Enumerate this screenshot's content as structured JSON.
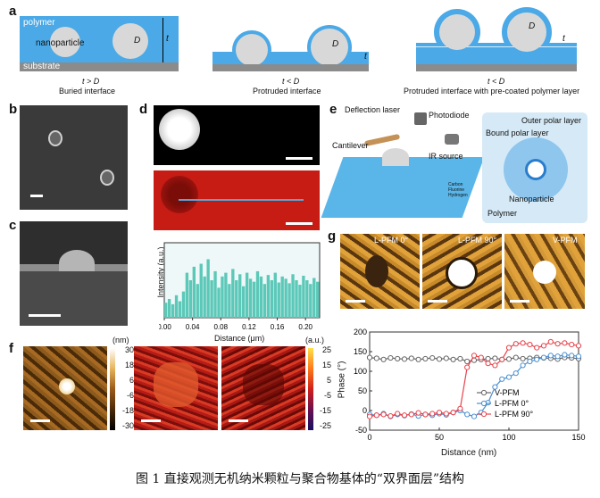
{
  "panel_labels": {
    "a": "a",
    "b": "b",
    "c": "c",
    "d": "d",
    "e": "e",
    "f": "f",
    "g": "g"
  },
  "panel_a": {
    "left": {
      "polymer": "polymer",
      "nanoparticle": "nanoparticle",
      "substrate": "substrate",
      "D": "D",
      "t": "t",
      "cond": "t > D",
      "title": "Buried interface"
    },
    "mid": {
      "D": "D",
      "t": "t",
      "cond": "t < D",
      "title": "Protruded interface"
    },
    "right": {
      "D": "D",
      "t": "t",
      "cond": "t < D",
      "title": "Protruded interface with pre-coated polymer layer"
    }
  },
  "panel_d_chart": {
    "ylabel": "Intensity (a.u.)",
    "xlabel": "Distance (μm)",
    "xticks": [
      "0.00",
      "0.04",
      "0.08",
      "0.12",
      "0.16",
      "0.20"
    ]
  },
  "chart_data": {
    "type": "bar",
    "xlabel": "Distance (μm)",
    "ylabel": "Intensity (a.u.)",
    "xlim": [
      0.0,
      0.22
    ],
    "x": [
      0.0,
      0.005,
      0.01,
      0.015,
      0.02,
      0.025,
      0.03,
      0.035,
      0.04,
      0.045,
      0.05,
      0.055,
      0.06,
      0.065,
      0.07,
      0.075,
      0.08,
      0.085,
      0.09,
      0.095,
      0.1,
      0.105,
      0.11,
      0.115,
      0.12,
      0.125,
      0.13,
      0.135,
      0.14,
      0.145,
      0.15,
      0.155,
      0.16,
      0.165,
      0.17,
      0.175,
      0.18,
      0.185,
      0.19,
      0.195,
      0.2,
      0.205,
      0.21,
      0.215
    ],
    "values": [
      0.2,
      0.25,
      0.18,
      0.3,
      0.22,
      0.35,
      0.6,
      0.5,
      0.68,
      0.45,
      0.72,
      0.55,
      0.78,
      0.5,
      0.62,
      0.4,
      0.55,
      0.6,
      0.45,
      0.65,
      0.5,
      0.58,
      0.42,
      0.6,
      0.52,
      0.48,
      0.62,
      0.55,
      0.45,
      0.57,
      0.5,
      0.6,
      0.47,
      0.55,
      0.52,
      0.46,
      0.58,
      0.5,
      0.44,
      0.56,
      0.5,
      0.45,
      0.53,
      0.48
    ]
  },
  "panel_e": {
    "deflection_laser": "Deflection laser",
    "photodiode": "Photodiode",
    "cantilever": "Cantilever",
    "ir_source": "IR source",
    "outer_polar_layer": "Outer polar layer",
    "bound_polar_layer": "Bound polar layer",
    "nanoparticle": "Nanoparticle",
    "polymer": "Polymer",
    "legend": [
      "Carbon",
      "Fluorine",
      "Hydrogen"
    ]
  },
  "panel_g": {
    "l0": "L-PFM 0°",
    "l90": "L-PFM 90°",
    "v": "V-PFM"
  },
  "panel_f": {
    "height_unit": "(nm)",
    "height_ticks": [
      "30",
      "18",
      "6",
      "-6",
      "-18",
      "-30"
    ],
    "amp_unit": "(a.u.)",
    "amp_ticks": [
      "25",
      "15",
      "5",
      "-5",
      "-15",
      "-25"
    ]
  },
  "phase_chart": {
    "ylabel": "Phase (°)",
    "xlabel": "Distance (nm)",
    "yticks": [
      "200",
      "150",
      "100",
      "50",
      "0",
      "-50"
    ],
    "xticks": [
      "0",
      "50",
      "100",
      "150"
    ],
    "legend": [
      "V-PFM",
      "L-PFM 0°",
      "L-PFM 90°"
    ],
    "colors": {
      "V-PFM": "#666666",
      "L-PFM 0°": "#4a8fd0",
      "L-PFM 90°": "#e8424a"
    }
  },
  "phase_data": {
    "type": "line",
    "x": [
      0,
      5,
      10,
      15,
      20,
      25,
      30,
      35,
      40,
      45,
      50,
      55,
      60,
      65,
      70,
      75,
      80,
      85,
      90,
      95,
      100,
      105,
      110,
      115,
      120,
      125,
      130,
      135,
      140,
      145,
      150
    ],
    "series": [
      {
        "name": "V-PFM",
        "values": [
          135,
          133,
          130,
          134,
          132,
          131,
          133,
          130,
          132,
          134,
          131,
          133,
          130,
          132,
          125,
          128,
          130,
          132,
          133,
          130,
          131,
          135,
          132,
          133,
          135,
          134,
          133,
          131,
          135,
          134,
          132
        ]
      },
      {
        "name": "L-PFM 0°",
        "values": [
          -10,
          -12,
          -8,
          -15,
          -10,
          -13,
          -9,
          -14,
          -10,
          -12,
          -8,
          -11,
          -5,
          0,
          -10,
          -15,
          -5,
          20,
          60,
          80,
          85,
          95,
          115,
          125,
          130,
          135,
          140,
          138,
          142,
          140,
          138
        ]
      },
      {
        "name": "L-PFM 90°",
        "values": [
          -15,
          -12,
          -10,
          -14,
          -8,
          -12,
          -10,
          -6,
          -10,
          -8,
          -5,
          -8,
          -5,
          5,
          110,
          140,
          135,
          120,
          115,
          130,
          160,
          170,
          172,
          168,
          160,
          165,
          175,
          170,
          172,
          168,
          165
        ]
      }
    ],
    "xlim": [
      0,
      150
    ],
    "ylim": [
      -50,
      200
    ]
  },
  "caption": "图 1  直接观测无机纳米颗粒与聚合物基体的“双界面层”结构"
}
